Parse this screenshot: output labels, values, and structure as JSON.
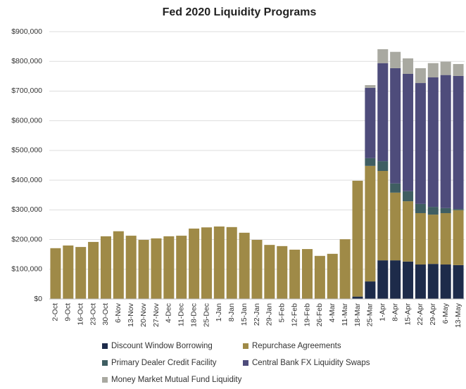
{
  "chart_data": {
    "type": "stacked_bar",
    "title": "Fed 2020 Liquidity Programs",
    "categories": [
      "2-Oct",
      "9-Oct",
      "16-Oct",
      "23-Oct",
      "30-Oct",
      "6-Nov",
      "13-Nov",
      "20-Nov",
      "27-Nov",
      "4-Dec",
      "11-Dec",
      "18-Dec",
      "25-Dec",
      "1-Jan",
      "8-Jan",
      "15-Jan",
      "22-Jan",
      "29-Jan",
      "5-Feb",
      "12-Feb",
      "19-Feb",
      "26-Feb",
      "4-Mar",
      "11-Mar",
      "18-Mar",
      "25-Mar",
      "1-Apr",
      "8-Apr",
      "15-Apr",
      "22-Apr",
      "29-Apr",
      "6-May",
      "13-May"
    ],
    "series": [
      {
        "name": "Discount Window Borrowing",
        "color": "#1d2b4a",
        "values": [
          0,
          0,
          0,
          0,
          0,
          0,
          0,
          0,
          0,
          0,
          0,
          0,
          0,
          0,
          0,
          0,
          0,
          0,
          0,
          0,
          0,
          0,
          0,
          0,
          8000,
          59000,
          130000,
          130000,
          126000,
          116000,
          118000,
          116000,
          114000
        ]
      },
      {
        "name": "Repurchase Agreements",
        "color": "#9f8a47",
        "values": [
          171000,
          180000,
          175000,
          192000,
          211000,
          228000,
          213000,
          199000,
          204000,
          211000,
          213000,
          237000,
          241000,
          244000,
          242000,
          223000,
          199000,
          182000,
          178000,
          166000,
          168000,
          145000,
          152000,
          201000,
          390000,
          389000,
          301000,
          228000,
          203000,
          173000,
          166000,
          173000,
          185000
        ]
      },
      {
        "name": "Primary Dealer Credit Facility",
        "color": "#3f5e62",
        "values": [
          0,
          0,
          0,
          0,
          0,
          0,
          0,
          0,
          0,
          0,
          0,
          0,
          0,
          0,
          0,
          0,
          0,
          0,
          0,
          0,
          0,
          0,
          0,
          0,
          0,
          26000,
          33000,
          31000,
          34000,
          31000,
          26000,
          17000,
          4000
        ]
      },
      {
        "name": "Central Bank FX Liquidity Swaps",
        "color": "#4e4c7b",
        "values": [
          0,
          0,
          0,
          0,
          0,
          0,
          0,
          0,
          0,
          0,
          0,
          0,
          0,
          0,
          0,
          0,
          0,
          0,
          0,
          0,
          0,
          0,
          0,
          0,
          0,
          237000,
          330000,
          388000,
          395000,
          407000,
          436000,
          448000,
          448000
        ]
      },
      {
        "name": "Money Market Mutual Fund Liquidity",
        "color": "#a9a9a1",
        "values": [
          0,
          0,
          0,
          0,
          0,
          0,
          0,
          0,
          0,
          0,
          0,
          0,
          0,
          0,
          0,
          0,
          0,
          0,
          0,
          0,
          0,
          0,
          0,
          0,
          0,
          9000,
          47000,
          55000,
          52000,
          50000,
          48000,
          45000,
          40000
        ]
      }
    ],
    "ylim": [
      0,
      900000
    ],
    "yticks": [
      {
        "value": 0,
        "label": "$0"
      },
      {
        "value": 100000,
        "label": "$100,000"
      },
      {
        "value": 200000,
        "label": "$200,000"
      },
      {
        "value": 300000,
        "label": "$300,000"
      },
      {
        "value": 400000,
        "label": "$400,000"
      },
      {
        "value": 500000,
        "label": "$500,000"
      },
      {
        "value": 600000,
        "label": "$600,000"
      },
      {
        "value": 700000,
        "label": "$700,000"
      },
      {
        "value": 800000,
        "label": "$800,000"
      },
      {
        "value": 900000,
        "label": "$900,000"
      }
    ],
    "grid": true
  }
}
